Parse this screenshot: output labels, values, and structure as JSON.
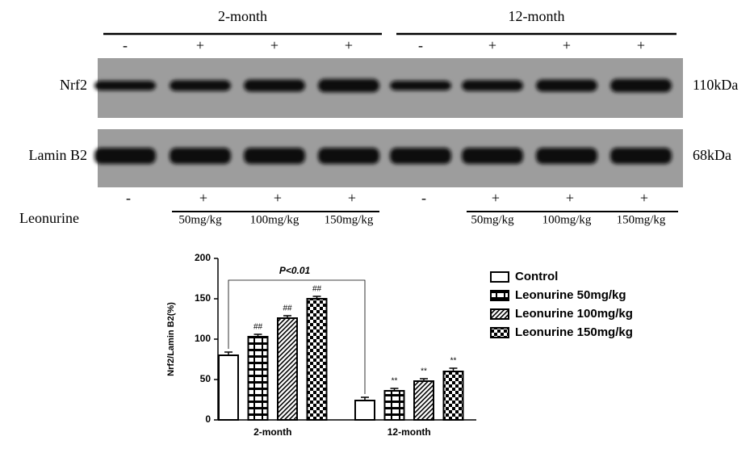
{
  "blot": {
    "groups": [
      "2-month",
      "12-month"
    ],
    "top_signs": [
      "-",
      "+",
      "+",
      "+",
      "-",
      "+",
      "+",
      "+"
    ],
    "rows": [
      {
        "label": "Nrf2",
        "size": "110kDa"
      },
      {
        "label": "Lamin B2",
        "size": "68kDa"
      }
    ],
    "bottom_signs": [
      "-",
      "+",
      "+",
      "+",
      "-",
      "+",
      "+",
      "+"
    ],
    "treatment_label": "Leonurine",
    "doses": [
      null,
      "50mg/kg",
      "100mg/kg",
      "150mg/kg",
      null,
      "50mg/kg",
      "100mg/kg",
      "150mg/kg"
    ]
  },
  "chart_data": {
    "type": "bar",
    "y_label": "Nrf2/Lamin B2(%)",
    "categories": [
      "2-month",
      "12-month"
    ],
    "series": [
      {
        "name": "Control",
        "color": "#000000",
        "pattern": "none",
        "values": [
          80,
          24
        ],
        "errors": [
          4,
          4
        ]
      },
      {
        "name": "Leonurine 50mg/kg",
        "color": "#000000",
        "pattern": "brick",
        "values": [
          103,
          36
        ],
        "errors": [
          3,
          3
        ],
        "annotations": [
          "##",
          "**"
        ]
      },
      {
        "name": "Leonurine 100mg/kg",
        "color": "#000000",
        "pattern": "hatch",
        "values": [
          126,
          48
        ],
        "errors": [
          3,
          3
        ],
        "annotations": [
          "##",
          "**"
        ]
      },
      {
        "name": "Leonurine 150mg/kg",
        "color": "#000000",
        "pattern": "checker",
        "values": [
          150,
          60
        ],
        "errors": [
          3,
          4
        ],
        "annotations": [
          "##",
          "**"
        ]
      }
    ],
    "ylim": [
      0,
      200
    ],
    "yticks": [
      0,
      50,
      100,
      150,
      200
    ],
    "comparison_label": "P<0.01"
  }
}
